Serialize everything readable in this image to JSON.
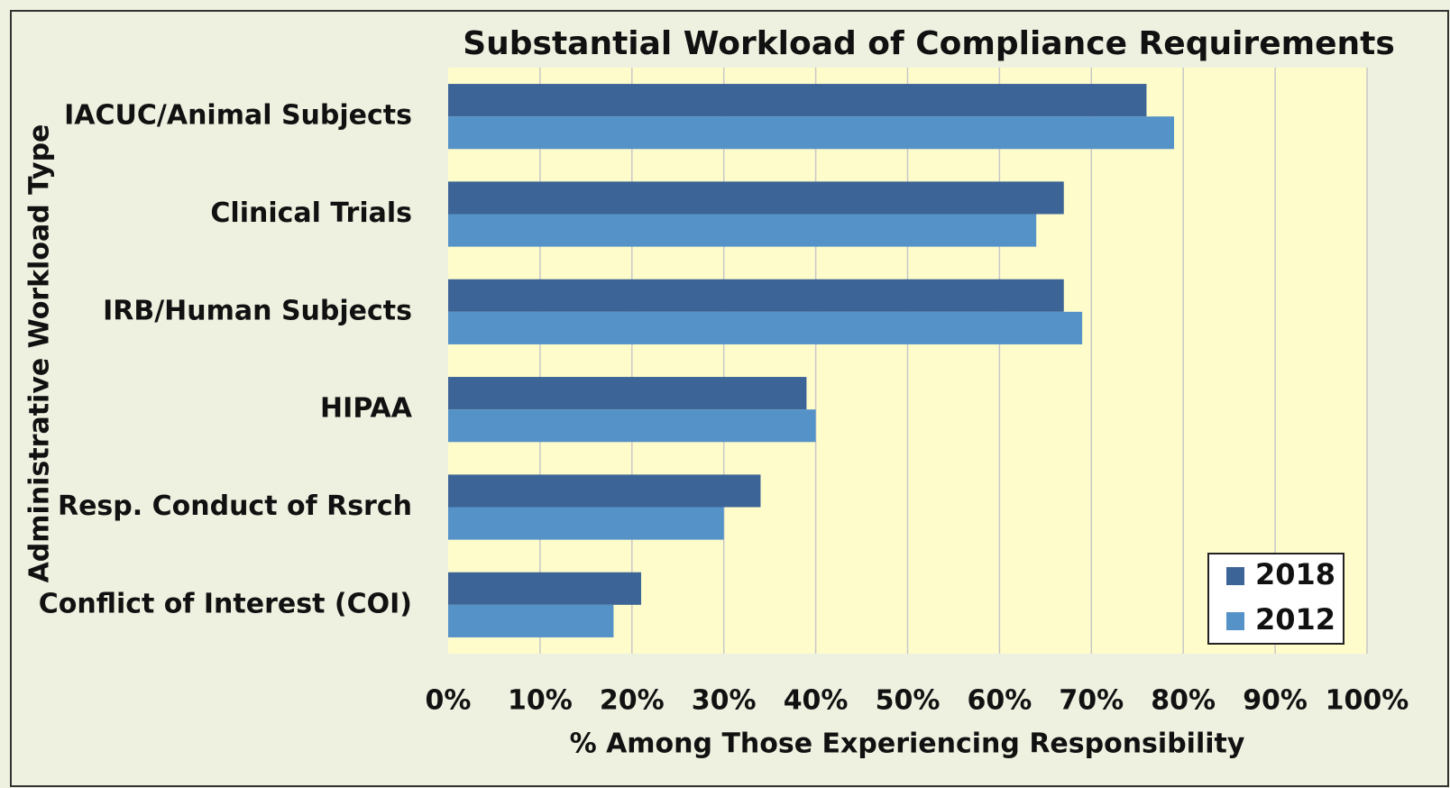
{
  "chart_data": {
    "type": "barh",
    "title": "Substantial Workload of Compliance Requirements",
    "x_label": "% Among Those Experiencing Responsibility",
    "y_label": "Administrative Workload Type",
    "categories": [
      "IACUC/Animal Subjects",
      "Clinical Trials",
      "IRB/Human Subjects",
      "HIPAA",
      "Resp. Conduct of Rsrch",
      "Conflict of Interest (COI)"
    ],
    "series": [
      {
        "name": "2018",
        "color": "#3c6496",
        "values": [
          76,
          67,
          67,
          39,
          34,
          21
        ]
      },
      {
        "name": "2012",
        "color": "#5592c8",
        "values": [
          79,
          64,
          69,
          40,
          30,
          18
        ]
      }
    ],
    "xlim": [
      0,
      100
    ],
    "xticks": [
      {
        "value": 0,
        "label": "0%"
      },
      {
        "value": 10,
        "label": "10%"
      },
      {
        "value": 20,
        "label": "20%"
      },
      {
        "value": 30,
        "label": "30%"
      },
      {
        "value": 40,
        "label": "40%"
      },
      {
        "value": 50,
        "label": "50%"
      },
      {
        "value": 60,
        "label": "60%"
      },
      {
        "value": 70,
        "label": "70%"
      },
      {
        "value": 80,
        "label": "80%"
      },
      {
        "value": 90,
        "label": "90%"
      },
      {
        "value": 100,
        "label": "100%"
      }
    ],
    "grid": true,
    "legend": "lower right"
  }
}
